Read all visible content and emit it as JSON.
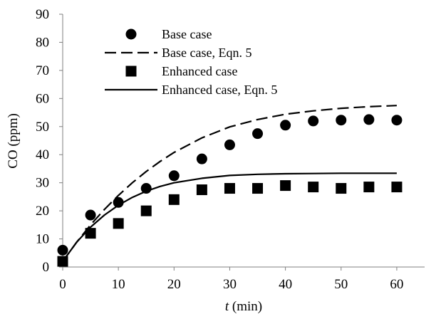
{
  "chart_data": {
    "type": "scatter",
    "title": "",
    "xlabel_italic": "t",
    "xlabel_rest": " (min)",
    "ylabel": "CO (ppm)",
    "xlim": [
      0,
      65
    ],
    "ylim": [
      0,
      90
    ],
    "xticks": [
      0,
      10,
      20,
      30,
      40,
      50,
      60
    ],
    "yticks": [
      0,
      10,
      20,
      30,
      40,
      50,
      60,
      70,
      80,
      90
    ],
    "grid": false,
    "legend_position": "top-left",
    "series": [
      {
        "name": "Base case",
        "kind": "marker-circle",
        "color": "#000000",
        "x": [
          0,
          5,
          10,
          15,
          20,
          25,
          30,
          35,
          40,
          45,
          50,
          55,
          60
        ],
        "y": [
          6,
          18.5,
          23,
          28,
          32.5,
          38.5,
          43.5,
          47.5,
          50.5,
          52,
          52.3,
          52.5,
          52.3
        ]
      },
      {
        "name": "Base case, Eqn. 5",
        "kind": "line-dashed",
        "color": "#000000",
        "x": [
          0,
          2.5,
          5,
          7.5,
          10,
          12.5,
          15,
          17.5,
          20,
          25,
          30,
          35,
          40,
          45,
          50,
          55,
          60
        ],
        "y": [
          2,
          8.8,
          15,
          20.5,
          25.5,
          30,
          34,
          37.6,
          40.8,
          46,
          49.9,
          52.5,
          54.4,
          55.6,
          56.5,
          57.1,
          57.5
        ]
      },
      {
        "name": "Enhanced case",
        "kind": "marker-square",
        "color": "#000000",
        "x": [
          0,
          5,
          10,
          15,
          20,
          25,
          30,
          35,
          40,
          45,
          50,
          55,
          60
        ],
        "y": [
          2,
          12,
          15.5,
          20,
          24,
          27.5,
          28,
          28,
          29,
          28.5,
          28,
          28.5,
          28.5
        ]
      },
      {
        "name": "Enhanced case, Eqn. 5",
        "kind": "line-solid",
        "color": "#000000",
        "x": [
          0,
          2.5,
          5,
          7.5,
          10,
          12.5,
          15,
          17.5,
          20,
          25,
          30,
          35,
          40,
          45,
          50,
          55,
          60
        ],
        "y": [
          2,
          8.8,
          14.2,
          18.5,
          22,
          24.8,
          27,
          28.7,
          30,
          31.6,
          32.6,
          33,
          33.2,
          33.3,
          33.4,
          33.4,
          33.4
        ]
      }
    ]
  }
}
